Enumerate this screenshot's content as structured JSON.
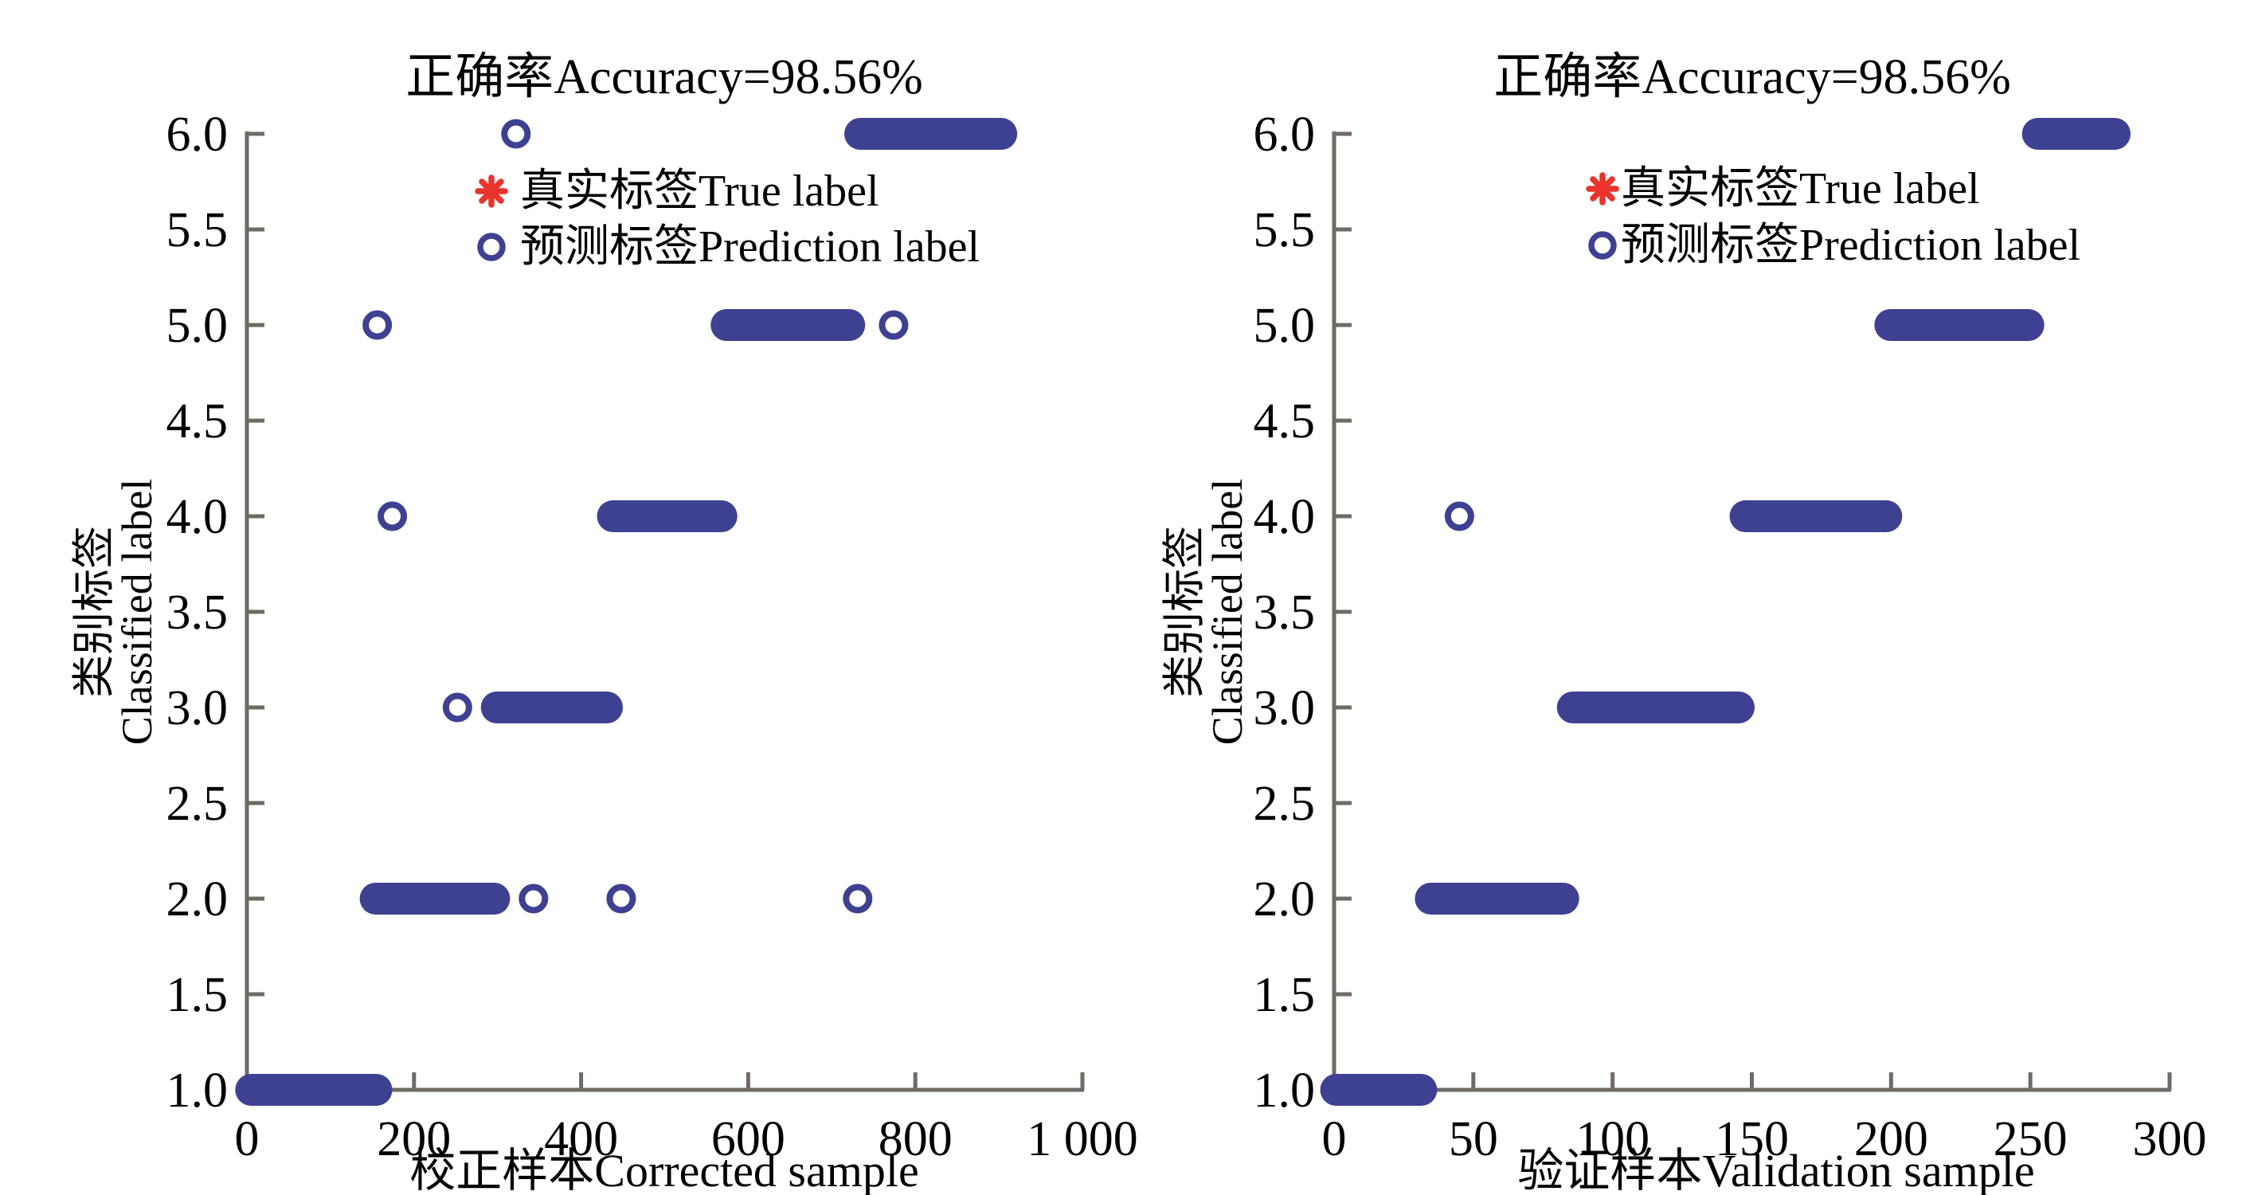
{
  "colors": {
    "prediction_blue": "#3e4191",
    "true_label_red": "#e8342b",
    "axis_gray": "#6f6a64",
    "text_black": "#000000",
    "background": "#ffffff"
  },
  "chart_data": [
    {
      "type": "scatter",
      "title": "正确率Accuracy=98.56%",
      "accuracy_percent": 98.56,
      "xlabel": "校正样本Corrected sample",
      "ylabel_line1": "类别标签",
      "ylabel_line2": "Classified label",
      "xlim": [
        0,
        1000
      ],
      "ylim": [
        1.0,
        6.0
      ],
      "grid": false,
      "legend_position": "top-inside",
      "x_tick_values": [
        0,
        200,
        400,
        600,
        800,
        1000
      ],
      "x_tick_labels": [
        "0",
        "200",
        "400",
        "600",
        "800",
        "1 000"
      ],
      "y_tick_values": [
        1,
        1.5,
        2,
        2.5,
        3,
        3.5,
        4,
        4.5,
        5,
        5.5,
        6
      ],
      "y_tick_labels": [
        "1.0",
        "1.5",
        "2.0",
        "2.5",
        "3.0",
        "3.5",
        "4.0",
        "4.5",
        "5.0",
        "5.5",
        "6.0"
      ],
      "series": [
        {
          "name": "真实标签True label",
          "marker": "asterisk",
          "color": "#e8342b"
        },
        {
          "name": "预测标签Prediction label",
          "marker": "open-circle",
          "color": "#3e4191"
        }
      ],
      "prediction_bands": [
        {
          "class": 1,
          "x_from": -14,
          "x_to": 174
        },
        {
          "class": 2,
          "x_from": 135,
          "x_to": 315
        },
        {
          "class": 3,
          "x_from": 280,
          "x_to": 450
        },
        {
          "class": 4,
          "x_from": 419,
          "x_to": 587
        },
        {
          "class": 5,
          "x_from": 555,
          "x_to": 740
        },
        {
          "class": 6,
          "x_from": 715,
          "x_to": 922
        }
      ],
      "outlier_points": [
        {
          "x": 156,
          "y": 5
        },
        {
          "x": 174,
          "y": 4
        },
        {
          "x": 252,
          "y": 3
        },
        {
          "x": 322,
          "y": 6
        },
        {
          "x": 343,
          "y": 2
        },
        {
          "x": 448,
          "y": 2
        },
        {
          "x": 731,
          "y": 2
        },
        {
          "x": 774,
          "y": 5
        }
      ]
    },
    {
      "type": "scatter",
      "title": "正确率Accuracy=98.56%",
      "accuracy_percent": 98.56,
      "xlabel": "验证样本Validation sample",
      "ylabel_line1": "类别标签",
      "ylabel_line2": "Classified label",
      "xlim": [
        0,
        300
      ],
      "ylim": [
        1.0,
        6.0
      ],
      "grid": false,
      "legend_position": "top-inside",
      "x_tick_values": [
        0,
        50,
        100,
        150,
        200,
        250,
        300
      ],
      "x_tick_labels": [
        "0",
        "50",
        "100",
        "150",
        "200",
        "250",
        "300"
      ],
      "y_tick_values": [
        1,
        1.5,
        2,
        2.5,
        3,
        3.5,
        4,
        4.5,
        5,
        5.5,
        6
      ],
      "y_tick_labels": [
        "1.0",
        "1.5",
        "2.0",
        "2.5",
        "3.0",
        "3.5",
        "4.0",
        "4.5",
        "5.0",
        "5.5",
        "6.0"
      ],
      "series": [
        {
          "name": "真实标签True label",
          "marker": "asterisk",
          "color": "#e8342b"
        },
        {
          "name": "预测标签Prediction label",
          "marker": "open-circle",
          "color": "#3e4191"
        }
      ],
      "prediction_bands": [
        {
          "class": 1,
          "x_from": -5,
          "x_to": 37
        },
        {
          "class": 2,
          "x_from": 29,
          "x_to": 88
        },
        {
          "class": 3,
          "x_from": 80,
          "x_to": 151
        },
        {
          "class": 4,
          "x_from": 142,
          "x_to": 204
        },
        {
          "class": 5,
          "x_from": 194,
          "x_to": 255
        },
        {
          "class": 6,
          "x_from": 247,
          "x_to": 286
        }
      ],
      "outlier_points": [
        {
          "x": 45,
          "y": 4
        }
      ]
    }
  ]
}
